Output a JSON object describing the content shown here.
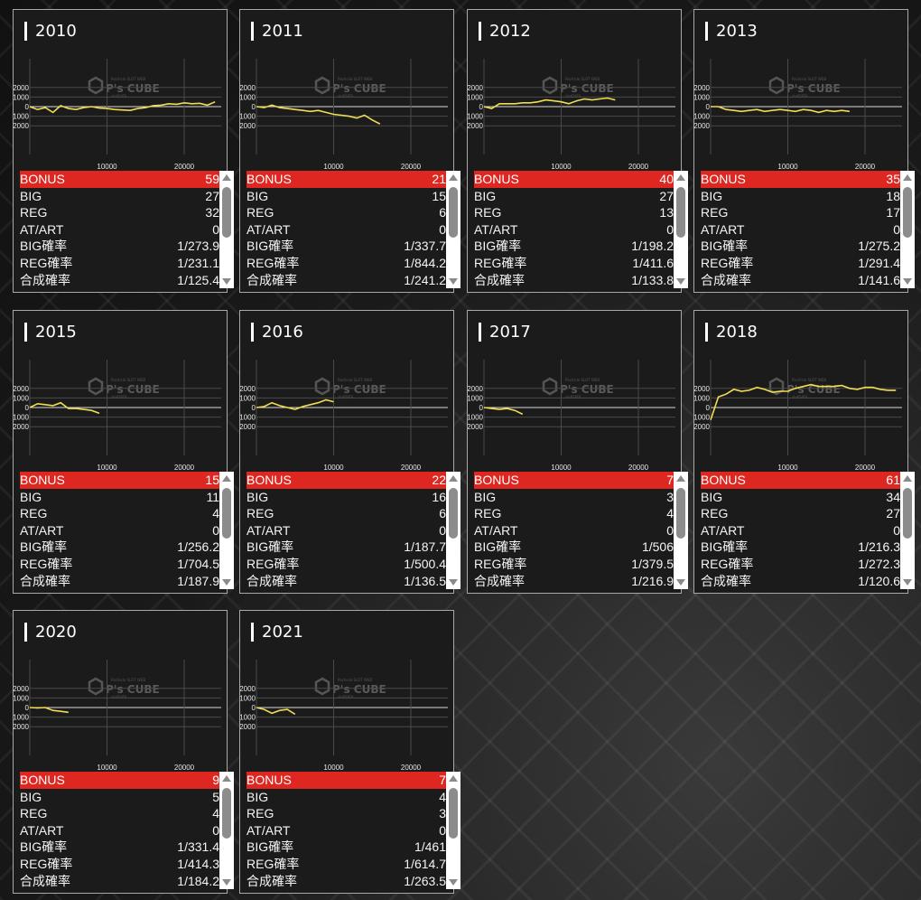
{
  "watermark": {
    "logo": "P's CUBE",
    "sub": "Pachislo SLOT WEB",
    "sub2": "slotDATA"
  },
  "axis": {
    "y_ticks": [
      2000,
      1000,
      0,
      -1000,
      -2000
    ],
    "x_ticks": [
      10000,
      20000
    ]
  },
  "colors": {
    "line": "#f0dd50",
    "bonus_row": "#dd2720",
    "card_bg": "#1b1b1b"
  },
  "cards": [
    {
      "year": "2010",
      "stats": {
        "bonus": "59",
        "big": "27",
        "reg": "32",
        "at": "0",
        "big_p": "1/273.9",
        "reg_p": "1/231.1",
        "gou_p": "1/125.4"
      },
      "chart_data": {
        "type": "line",
        "x": [
          0,
          1000,
          2000,
          3000,
          4000,
          5000,
          6000,
          7000,
          8000,
          9000,
          10000,
          11000,
          12000,
          13000,
          14000,
          15000,
          16000,
          17000,
          18000,
          19000,
          20000,
          21000,
          22000,
          23000,
          24000
        ],
        "y": [
          0,
          -300,
          -100,
          -600,
          100,
          -200,
          -300,
          -100,
          0,
          -150,
          -200,
          -300,
          -350,
          -400,
          -200,
          -100,
          100,
          150,
          300,
          250,
          400,
          300,
          350,
          150,
          500
        ]
      }
    },
    {
      "year": "2011",
      "stats": {
        "bonus": "21",
        "big": "15",
        "reg": "6",
        "at": "0",
        "big_p": "1/337.7",
        "reg_p": "1/844.2",
        "gou_p": "1/241.2"
      },
      "chart_data": {
        "type": "line",
        "x": [
          0,
          1000,
          2000,
          3000,
          4000,
          5000,
          6000,
          7000,
          8000,
          9000,
          10000,
          11000,
          12000,
          13000,
          14000,
          15000,
          16000
        ],
        "y": [
          0,
          -100,
          150,
          -100,
          -200,
          -300,
          -400,
          -500,
          -400,
          -600,
          -800,
          -900,
          -1000,
          -1200,
          -900,
          -1400,
          -1800
        ]
      }
    },
    {
      "year": "2012",
      "stats": {
        "bonus": "40",
        "big": "27",
        "reg": "13",
        "at": "0",
        "big_p": "1/198.2",
        "reg_p": "1/411.6",
        "gou_p": "1/133.8"
      },
      "chart_data": {
        "type": "line",
        "x": [
          0,
          1000,
          2000,
          3000,
          4000,
          5000,
          6000,
          7000,
          8000,
          9000,
          10000,
          11000,
          12000,
          13000,
          14000,
          15000,
          16000,
          17000
        ],
        "y": [
          0,
          -200,
          300,
          300,
          300,
          400,
          400,
          500,
          700,
          600,
          500,
          300,
          600,
          800,
          700,
          800,
          900,
          700
        ]
      }
    },
    {
      "year": "2013",
      "stats": {
        "bonus": "35",
        "big": "18",
        "reg": "17",
        "at": "0",
        "big_p": "1/275.2",
        "reg_p": "1/291.4",
        "gou_p": "1/141.6"
      },
      "chart_data": {
        "type": "line",
        "x": [
          0,
          1000,
          2000,
          3000,
          4000,
          5000,
          6000,
          7000,
          8000,
          9000,
          10000,
          11000,
          12000,
          13000,
          14000,
          15000,
          16000,
          17000,
          18000
        ],
        "y": [
          0,
          0,
          -300,
          -400,
          -500,
          -400,
          -300,
          -500,
          -400,
          -300,
          -400,
          -500,
          -300,
          -400,
          -600,
          -400,
          -500,
          -400,
          -500
        ]
      }
    },
    {
      "year": "2015",
      "stats": {
        "bonus": "15",
        "big": "11",
        "reg": "4",
        "at": "0",
        "big_p": "1/256.2",
        "reg_p": "1/704.5",
        "gou_p": "1/187.9"
      },
      "chart_data": {
        "type": "line",
        "x": [
          0,
          1000,
          2000,
          3000,
          4000,
          5000,
          6000,
          7000,
          8000,
          9000
        ],
        "y": [
          0,
          400,
          300,
          200,
          500,
          -100,
          -100,
          -200,
          -300,
          -600
        ]
      }
    },
    {
      "year": "2016",
      "stats": {
        "bonus": "22",
        "big": "16",
        "reg": "6",
        "at": "0",
        "big_p": "1/187.7",
        "reg_p": "1/500.4",
        "gou_p": "1/136.5"
      },
      "chart_data": {
        "type": "line",
        "x": [
          0,
          1000,
          2000,
          3000,
          4000,
          5000,
          6000,
          7000,
          8000,
          9000,
          10000
        ],
        "y": [
          0,
          100,
          500,
          200,
          0,
          -200,
          100,
          300,
          500,
          800,
          600
        ]
      }
    },
    {
      "year": "2017",
      "stats": {
        "bonus": "7",
        "big": "3",
        "reg": "4",
        "at": "0",
        "big_p": "1/506",
        "reg_p": "1/379.5",
        "gou_p": "1/216.9"
      },
      "chart_data": {
        "type": "line",
        "x": [
          0,
          1000,
          2000,
          3000,
          4000,
          5000
        ],
        "y": [
          0,
          -100,
          -200,
          -100,
          -300,
          -700
        ]
      }
    },
    {
      "year": "2018",
      "stats": {
        "bonus": "61",
        "big": "34",
        "reg": "27",
        "at": "0",
        "big_p": "1/216.3",
        "reg_p": "1/272.3",
        "gou_p": "1/120.6"
      },
      "chart_data": {
        "type": "line",
        "x": [
          0,
          1000,
          2000,
          3000,
          4000,
          5000,
          6000,
          7000,
          8000,
          9000,
          10000,
          11000,
          12000,
          13000,
          14000,
          15000,
          16000,
          17000,
          18000,
          19000,
          20000,
          21000,
          22000,
          23000,
          24000
        ],
        "y": [
          -1300,
          1100,
          1400,
          1900,
          1700,
          1800,
          2100,
          1900,
          1600,
          1700,
          1700,
          2000,
          2200,
          2400,
          2200,
          2200,
          2200,
          2300,
          2000,
          1900,
          2100,
          2100,
          1900,
          1800,
          1800
        ]
      }
    },
    {
      "year": "2020",
      "stats": {
        "bonus": "9",
        "big": "5",
        "reg": "4",
        "at": "0",
        "big_p": "1/331.4",
        "reg_p": "1/414.3",
        "gou_p": "1/184.2"
      },
      "chart_data": {
        "type": "line",
        "x": [
          0,
          1000,
          2000,
          3000,
          4000,
          5000
        ],
        "y": [
          0,
          -50,
          0,
          -300,
          -400,
          -500
        ]
      }
    },
    {
      "year": "2021",
      "stats": {
        "bonus": "7",
        "big": "4",
        "reg": "3",
        "at": "0",
        "big_p": "1/461",
        "reg_p": "1/614.7",
        "gou_p": "1/263.5"
      },
      "chart_data": {
        "type": "line",
        "x": [
          0,
          1000,
          2000,
          3000,
          4000,
          5000
        ],
        "y": [
          0,
          -200,
          -600,
          -300,
          -200,
          -700
        ]
      }
    }
  ]
}
